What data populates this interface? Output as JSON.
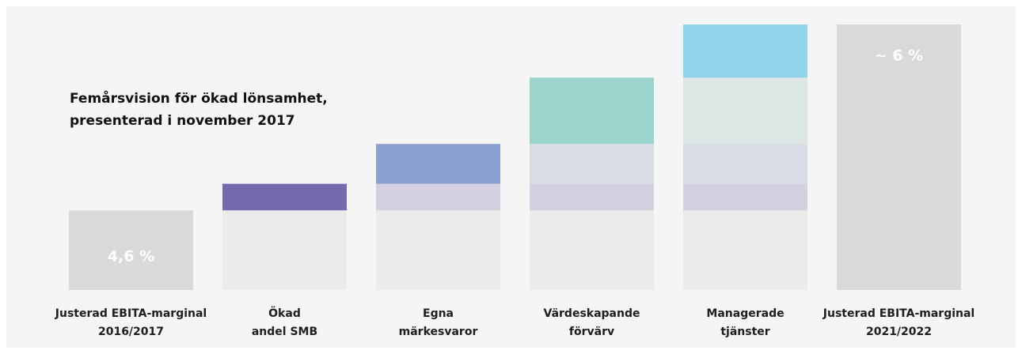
{
  "chart_data": {
    "type": "waterfall",
    "title": [
      "Femårsvision för ökad lönsamhet,",
      "presenterad i november 2017"
    ],
    "categories": [
      [
        "Justerad EBITA-marginal",
        "2016/2017"
      ],
      [
        "Ökad",
        "andel SMB"
      ],
      [
        "Egna",
        "märkesvaror"
      ],
      [
        "Värdeskapande",
        "förvärv"
      ],
      [
        "Managerade",
        "tjänster"
      ],
      [
        "Justerad EBITA-marginal",
        "2021/2022"
      ]
    ],
    "values": [
      4.6,
      0.2,
      0.3,
      0.5,
      0.4,
      6
    ],
    "value_labels": [
      "4,6 %",
      null,
      null,
      null,
      null,
      "~ 6 %"
    ],
    "kinds": [
      "total",
      "delta",
      "delta",
      "delta",
      "delta",
      "total"
    ],
    "colors": [
      "#d9d9d9",
      "#746aad",
      "#8aa0cf",
      "#9ad4cc",
      "#92d3ec",
      "#d9d9d9"
    ],
    "ylim": [
      4,
      6
    ]
  }
}
